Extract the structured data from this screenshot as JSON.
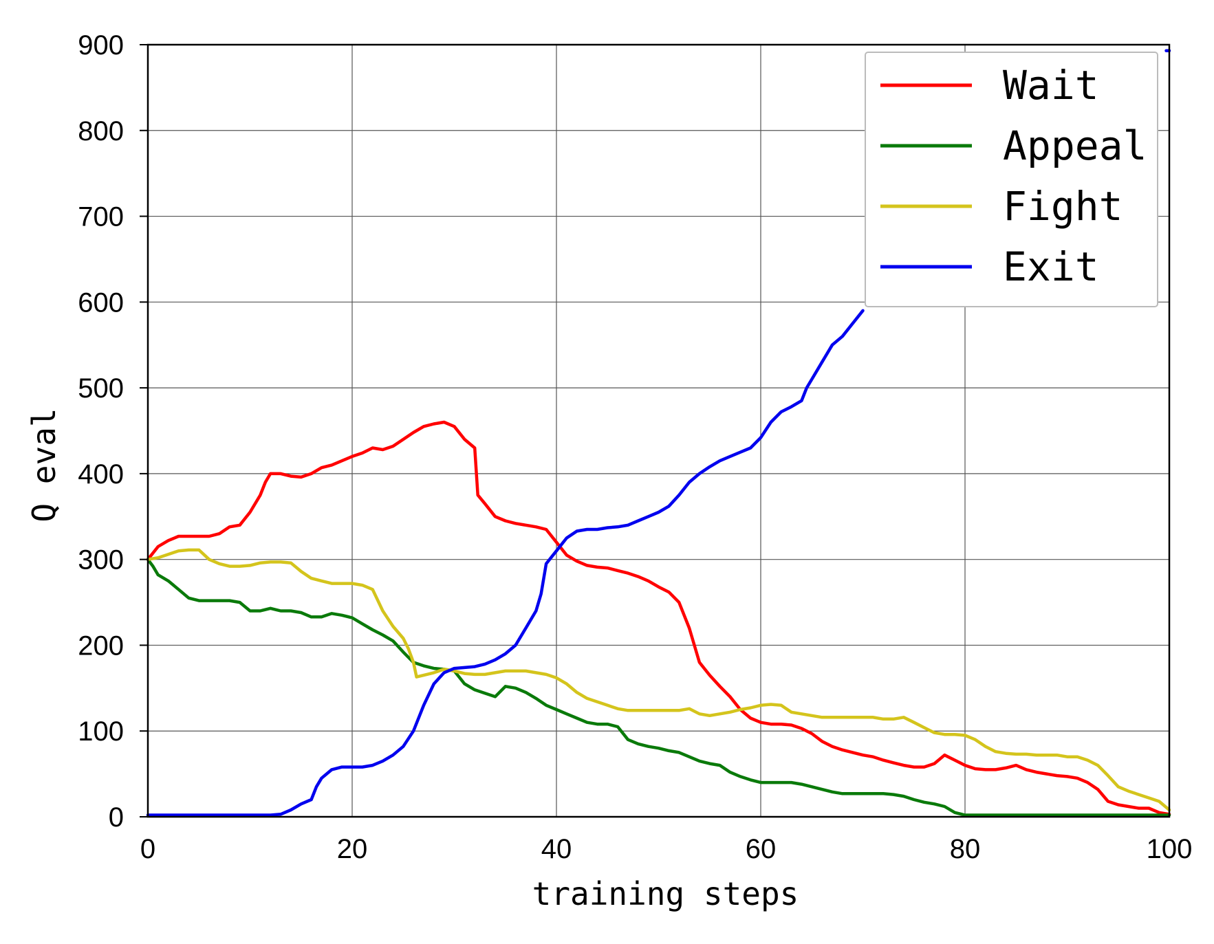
{
  "chart_data": {
    "type": "line",
    "title": "",
    "xlabel": "training steps",
    "ylabel": "Q eval",
    "xlim": [
      0,
      100
    ],
    "ylim": [
      0,
      900
    ],
    "xticks": [
      0,
      20,
      40,
      60,
      80,
      100
    ],
    "yticks": [
      0,
      100,
      200,
      300,
      400,
      500,
      600,
      700,
      800,
      900
    ],
    "grid": true,
    "legend_position": "top-right",
    "series": [
      {
        "name": "Wait",
        "color": "#ff0000",
        "x": [
          0,
          1,
          2,
          3,
          4,
          5,
          6,
          7,
          8,
          9,
          10,
          11,
          11.5,
          12,
          13,
          14,
          15,
          16,
          17,
          18,
          19,
          20,
          21,
          22,
          23,
          24,
          25,
          26,
          27,
          28,
          29,
          30,
          31,
          32,
          32.3,
          33,
          34,
          35,
          36,
          37,
          38,
          39,
          40,
          41,
          42,
          43,
          44,
          45,
          46,
          47,
          48,
          49,
          50,
          51,
          52,
          53,
          54,
          55,
          56,
          57,
          58,
          59,
          60,
          61,
          62,
          63,
          64,
          65,
          66,
          67,
          68,
          69,
          70,
          71,
          72,
          73,
          74,
          75,
          76,
          77,
          78,
          79,
          80,
          81,
          82,
          83,
          84,
          85,
          86,
          87,
          88,
          89,
          90,
          91,
          92,
          93,
          94,
          95,
          96,
          97,
          98,
          99,
          100
        ],
        "y": [
          300,
          315,
          322,
          327,
          327,
          327,
          327,
          330,
          338,
          340,
          355,
          375,
          390,
          400,
          400,
          397,
          396,
          400,
          407,
          410,
          415,
          420,
          424,
          430,
          428,
          432,
          440,
          448,
          455,
          458,
          460,
          455,
          440,
          430,
          375,
          365,
          350,
          345,
          342,
          340,
          338,
          335,
          320,
          305,
          298,
          293,
          291,
          290,
          287,
          284,
          280,
          275,
          268,
          262,
          250,
          220,
          180,
          165,
          152,
          140,
          125,
          115,
          110,
          108,
          108,
          107,
          103,
          97,
          88,
          82,
          78,
          75,
          72,
          70,
          66,
          63,
          60,
          58,
          58,
          62,
          72,
          66,
          60,
          56,
          55,
          55,
          57,
          60,
          55,
          52,
          50,
          48,
          47,
          45,
          40,
          32,
          18,
          14,
          12,
          10,
          10,
          5,
          3
        ]
      },
      {
        "name": "Appeal",
        "color": "#0a7a0a",
        "x": [
          0,
          0.5,
          1,
          2,
          3,
          4,
          5,
          6,
          7,
          8,
          9,
          10,
          11,
          12,
          13,
          14,
          15,
          16,
          17,
          18,
          19,
          20,
          21,
          22,
          23,
          24,
          25,
          26,
          27,
          28,
          29,
          30,
          31,
          32,
          33,
          34,
          35,
          36,
          37,
          38,
          39,
          40,
          41,
          42,
          43,
          44,
          45,
          46,
          47,
          48,
          49,
          50,
          51,
          52,
          53,
          54,
          55,
          56,
          57,
          58,
          59,
          60,
          61,
          62,
          63,
          64,
          65,
          66,
          67,
          68,
          69,
          70,
          71,
          72,
          73,
          74,
          75,
          76,
          77,
          78,
          79,
          80,
          85,
          90,
          95,
          100
        ],
        "y": [
          300,
          292,
          282,
          275,
          265,
          255,
          252,
          252,
          252,
          252,
          250,
          240,
          240,
          243,
          240,
          240,
          238,
          233,
          233,
          237,
          235,
          232,
          225,
          218,
          212,
          205,
          192,
          180,
          176,
          173,
          172,
          170,
          155,
          148,
          144,
          140,
          152,
          150,
          145,
          138,
          130,
          125,
          120,
          115,
          110,
          108,
          108,
          105,
          90,
          85,
          82,
          80,
          77,
          75,
          70,
          65,
          62,
          60,
          52,
          47,
          43,
          40,
          40,
          40,
          40,
          38,
          35,
          32,
          29,
          27,
          27,
          27,
          27,
          27,
          26,
          24,
          20,
          17,
          15,
          12,
          5,
          2,
          2,
          2,
          2,
          2
        ]
      },
      {
        "name": "Fight",
        "color": "#d4c41c",
        "x": [
          0,
          1,
          2,
          3,
          4,
          5,
          6,
          7,
          8,
          9,
          10,
          11,
          12,
          13,
          14,
          15,
          16,
          17,
          18,
          19,
          20,
          21,
          22,
          23,
          24,
          25,
          25.5,
          26,
          26.3,
          27,
          28,
          29,
          30,
          31,
          32,
          33,
          34,
          35,
          36,
          37,
          38,
          39,
          40,
          41,
          42,
          43,
          44,
          45,
          46,
          47,
          48,
          49,
          50,
          51,
          52,
          53,
          54,
          55,
          56,
          57,
          58,
          59,
          60,
          61,
          62,
          63,
          64,
          65,
          66,
          67,
          68,
          69,
          70,
          71,
          72,
          73,
          74,
          75,
          76,
          77,
          78,
          79,
          80,
          81,
          82,
          83,
          84,
          85,
          86,
          87,
          88,
          89,
          90,
          91,
          92,
          93,
          94,
          95,
          96,
          97,
          98,
          99,
          100
        ],
        "y": [
          300,
          302,
          306,
          310,
          311,
          311,
          300,
          295,
          292,
          292,
          293,
          296,
          297,
          297,
          296,
          286,
          278,
          275,
          272,
          272,
          272,
          270,
          265,
          240,
          222,
          208,
          196,
          180,
          163,
          165,
          168,
          172,
          170,
          167,
          166,
          166,
          168,
          170,
          170,
          170,
          168,
          166,
          162,
          155,
          145,
          138,
          134,
          130,
          126,
          124,
          124,
          124,
          124,
          124,
          124,
          126,
          120,
          118,
          120,
          122,
          125,
          127,
          130,
          131,
          130,
          122,
          120,
          118,
          116,
          116,
          116,
          116,
          116,
          116,
          114,
          114,
          116,
          110,
          104,
          98,
          96,
          96,
          95,
          90,
          82,
          76,
          74,
          73,
          73,
          72,
          72,
          72,
          70,
          70,
          66,
          60,
          48,
          35,
          30,
          26,
          22,
          18,
          8
        ]
      },
      {
        "name": "Exit",
        "color": "#0000ee",
        "x": [
          0,
          12,
          13,
          14,
          15,
          16,
          16.5,
          17,
          18,
          19,
          20,
          21,
          22,
          23,
          24,
          25,
          26,
          27,
          28,
          29,
          30,
          31,
          32,
          33,
          34,
          35,
          36,
          37,
          38,
          38.5,
          39,
          40,
          41,
          42,
          43,
          44,
          45,
          46,
          47,
          48,
          49,
          50,
          51,
          52,
          53,
          54,
          55,
          56,
          57,
          58,
          59,
          60,
          61,
          62,
          63,
          64,
          64.5,
          65,
          66,
          67,
          68,
          69,
          70
        ],
        "y": [
          2,
          2,
          3,
          8,
          15,
          20,
          35,
          45,
          55,
          58,
          58,
          58,
          60,
          65,
          72,
          82,
          100,
          130,
          155,
          168,
          173,
          174,
          175,
          178,
          183,
          190,
          200,
          220,
          240,
          260,
          295,
          310,
          325,
          333,
          335,
          335,
          337,
          338,
          340,
          345,
          350,
          355,
          362,
          375,
          390,
          400,
          408,
          415,
          420,
          425,
          430,
          442,
          460,
          472,
          478,
          485,
          500,
          510,
          530,
          550,
          560,
          575,
          590
        ]
      }
    ]
  }
}
